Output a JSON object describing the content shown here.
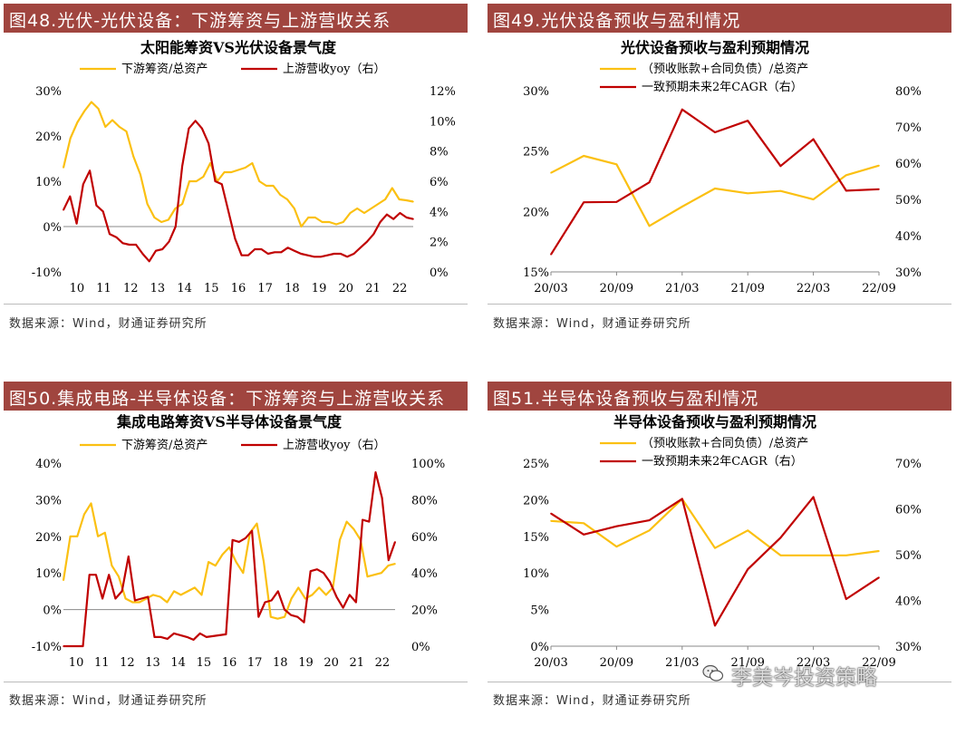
{
  "colors": {
    "header_bg": "#a0453f",
    "series_yellow": "#fbc012",
    "series_red": "#c00000",
    "axis": "#888888"
  },
  "panels": [
    {
      "header": "图48.光伏-光伏设备：下游筹资与上游营收关系",
      "source": "数据来源：Wind，财通证券研究所",
      "chart_data": {
        "type": "line",
        "title": "太阳能筹资VS光伏设备景气度",
        "legend": [
          "下游筹资/总资产",
          "上游营收yoy（右）"
        ],
        "x_labels": [
          "10",
          "11",
          "12",
          "13",
          "14",
          "15",
          "16",
          "17",
          "18",
          "19",
          "20",
          "21",
          "22"
        ],
        "x_range": [
          0,
          50
        ],
        "left_axis": {
          "min": -0.1,
          "max": 0.3,
          "ticks": [
            -0.1,
            0,
            0.1,
            0.2,
            0.3
          ],
          "labels": [
            "-10%",
            "0%",
            "10%",
            "20%",
            "30%"
          ]
        },
        "right_axis": {
          "min": 0,
          "max": 0.12,
          "ticks": [
            0,
            0.02,
            0.04,
            0.06,
            0.08,
            0.1,
            0.12
          ],
          "labels": [
            "0%",
            "2%",
            "4%",
            "6%",
            "8%",
            "10%",
            "12%"
          ]
        },
        "series": [
          {
            "name": "下游筹资/总资产",
            "axis": "left",
            "color": "#fbc012",
            "values": [
              0.13,
              0.195,
              0.23,
              0.255,
              0.275,
              0.26,
              0.22,
              0.235,
              0.22,
              0.21,
              0.155,
              0.115,
              0.05,
              0.02,
              0.01,
              0.015,
              0.04,
              0.05,
              0.1,
              0.1,
              0.11,
              0.14,
              0.1,
              0.12,
              0.12,
              0.125,
              0.13,
              0.14,
              0.1,
              0.09,
              0.09,
              0.07,
              0.06,
              0.04,
              0.0,
              0.02,
              0.02,
              0.01,
              0.01,
              0.005,
              0.01,
              0.03,
              0.04,
              0.03,
              0.04,
              0.05,
              0.06,
              0.085,
              0.06,
              0.058,
              0.055
            ]
          },
          {
            "name": "上游营收yoy（右）",
            "axis": "right",
            "color": "#c00000",
            "values": [
              0.041,
              0.05,
              0.032,
              0.058,
              0.067,
              0.044,
              0.04,
              0.025,
              0.023,
              0.019,
              0.018,
              0.018,
              0.012,
              0.007,
              0.014,
              0.015,
              0.02,
              0.03,
              0.07,
              0.095,
              0.1,
              0.095,
              0.085,
              0.06,
              0.058,
              0.04,
              0.022,
              0.011,
              0.011,
              0.015,
              0.015,
              0.012,
              0.013,
              0.013,
              0.016,
              0.014,
              0.012,
              0.011,
              0.01,
              0.01,
              0.011,
              0.012,
              0.012,
              0.01,
              0.012,
              0.016,
              0.02,
              0.025,
              0.033,
              0.038,
              0.035,
              0.039,
              0.036,
              0.035
            ]
          }
        ]
      }
    },
    {
      "header": "图49.光伏设备预收与盈利情况",
      "source": "数据来源：Wind，财通证券研究所",
      "chart_data": {
        "type": "line",
        "title": "光伏设备预收与盈利预期情况",
        "legend": [
          "（预收账款+合同负债）/总资产",
          "一致预期未来2年CAGR（右）"
        ],
        "x_labels": [
          "20/03",
          "20/09",
          "21/03",
          "21/09",
          "22/03",
          "22/09"
        ],
        "x_range": [
          0,
          10
        ],
        "left_axis": {
          "min": 0.15,
          "max": 0.3,
          "ticks": [
            0.15,
            0.2,
            0.25,
            0.3
          ],
          "labels": [
            "15%",
            "20%",
            "25%",
            "30%"
          ]
        },
        "right_axis": {
          "min": 0.3,
          "max": 0.8,
          "ticks": [
            0.3,
            0.4,
            0.5,
            0.6,
            0.7,
            0.8
          ],
          "labels": [
            "30%",
            "40%",
            "50%",
            "60%",
            "70%",
            "80%"
          ]
        },
        "series": [
          {
            "name": "（预收账款+合同负债）/总资产",
            "axis": "left",
            "color": "#fbc012",
            "x": [
              0,
              1,
              2,
              3,
              4,
              5,
              6,
              7,
              8,
              9,
              10
            ],
            "values": [
              0.232,
              0.246,
              0.239,
              0.188,
              0.204,
              0.219,
              0.215,
              0.217,
              0.21,
              0.23,
              0.238
            ]
          },
          {
            "name": "一致预期未来2年CAGR（右）",
            "axis": "right",
            "color": "#c00000",
            "x": [
              0,
              1,
              2,
              3,
              4,
              5,
              6,
              7,
              8,
              9,
              10
            ],
            "values": [
              0.348,
              0.492,
              0.493,
              0.547,
              0.748,
              0.685,
              0.717,
              0.592,
              0.666,
              0.524,
              0.528
            ]
          }
        ]
      }
    },
    {
      "header": "图50.集成电路-半导体设备：下游筹资与上游营收关系",
      "source": "数据来源：Wind，财通证券研究所",
      "chart_data": {
        "type": "line",
        "title": "集成电路筹资VS半导体设备景气度",
        "legend": [
          "下游筹资/总资产",
          "上游营收yoy（右）"
        ],
        "x_labels": [
          "10",
          "11",
          "12",
          "13",
          "14",
          "15",
          "16",
          "17",
          "18",
          "19",
          "20",
          "21",
          "22"
        ],
        "x_range": [
          0,
          50
        ],
        "left_axis": {
          "min": -0.1,
          "max": 0.4,
          "ticks": [
            -0.1,
            0,
            0.1,
            0.2,
            0.3,
            0.4
          ],
          "labels": [
            "-10%",
            "0%",
            "10%",
            "20%",
            "30%",
            "40%"
          ]
        },
        "right_axis": {
          "min": 0,
          "max": 1.0,
          "ticks": [
            0,
            0.2,
            0.4,
            0.6,
            0.8,
            1.0
          ],
          "labels": [
            "0%",
            "20%",
            "40%",
            "60%",
            "80%",
            "100%"
          ]
        },
        "series": [
          {
            "name": "下游筹资/总资产",
            "axis": "left",
            "color": "#fbc012",
            "values": [
              0.08,
              0.2,
              0.2,
              0.26,
              0.29,
              0.2,
              0.21,
              0.12,
              0.09,
              0.03,
              0.02,
              0.02,
              0.03,
              0.04,
              0.035,
              0.02,
              0.05,
              0.04,
              0.05,
              0.06,
              0.04,
              0.13,
              0.12,
              0.15,
              0.17,
              0.13,
              0.1,
              0.21,
              0.235,
              0.13,
              -0.02,
              -0.025,
              -0.02,
              0.03,
              0.06,
              0.03,
              0.04,
              0.06,
              0.04,
              0.06,
              0.19,
              0.24,
              0.22,
              0.19,
              0.09,
              0.095,
              0.1,
              0.12,
              0.125
            ]
          },
          {
            "name": "上游营收yoy（右）",
            "axis": "right",
            "color": "#c00000",
            "values": [
              0.0,
              0.0,
              0.0,
              0.0,
              0.39,
              0.39,
              0.26,
              0.39,
              0.26,
              0.3,
              0.49,
              0.25,
              0.26,
              0.27,
              0.05,
              0.05,
              0.04,
              0.07,
              0.06,
              0.05,
              0.035,
              0.07,
              0.05,
              0.055,
              0.06,
              0.065,
              0.58,
              0.57,
              0.59,
              0.63,
              0.16,
              0.24,
              0.25,
              0.3,
              0.2,
              0.17,
              0.16,
              0.13,
              0.41,
              0.42,
              0.4,
              0.35,
              0.27,
              0.21,
              0.28,
              0.24,
              0.69,
              0.68,
              0.95,
              0.81,
              0.47,
              0.57
            ]
          }
        ]
      }
    },
    {
      "header": "图51.半导体设备预收与盈利情况",
      "source": "数据来源：Wind，财通证券研究所",
      "chart_data": {
        "type": "line",
        "title": "半导体设备预收与盈利预期情况",
        "legend": [
          "（预收账款+合同负债）/总资产",
          "一致预期未来2年CAGR（右）"
        ],
        "x_labels": [
          "20/03",
          "20/09",
          "21/03",
          "21/09",
          "22/03",
          "22/09"
        ],
        "x_range": [
          0,
          10
        ],
        "left_axis": {
          "min": 0,
          "max": 0.25,
          "ticks": [
            0,
            0.05,
            0.1,
            0.15,
            0.2,
            0.25
          ],
          "labels": [
            "0%",
            "5%",
            "10%",
            "15%",
            "20%",
            "25%"
          ]
        },
        "right_axis": {
          "min": 0.3,
          "max": 0.7,
          "ticks": [
            0.3,
            0.4,
            0.5,
            0.6,
            0.7
          ],
          "labels": [
            "30%",
            "40%",
            "50%",
            "60%",
            "70%"
          ]
        },
        "series": [
          {
            "name": "（预收账款+合同负债）/总资产",
            "axis": "left",
            "color": "#fbc012",
            "x": [
              0,
              1,
              2,
              3,
              4,
              5,
              6,
              7,
              8,
              9,
              10
            ],
            "values": [
              0.171,
              0.168,
              0.136,
              0.158,
              0.201,
              0.134,
              0.158,
              0.124,
              0.124,
              0.124,
              0.13
            ]
          },
          {
            "name": "一致预期未来2年CAGR（右）",
            "axis": "right",
            "color": "#c00000",
            "x": [
              0,
              1,
              2,
              3,
              4,
              5,
              6,
              7,
              8,
              9,
              10
            ],
            "values": [
              0.59,
              0.544,
              0.562,
              0.575,
              0.622,
              0.345,
              0.468,
              0.537,
              0.626,
              0.403,
              0.45
            ]
          }
        ]
      }
    }
  ],
  "watermark": {
    "text": "李美岑投资策略",
    "icon": "wechat-icon"
  }
}
